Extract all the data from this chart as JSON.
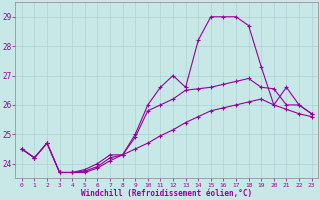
{
  "xlabel": "Windchill (Refroidissement éolien,°C)",
  "background_color": "#c8e8e8",
  "line_color": "#990099",
  "xlim": [
    -0.5,
    23.5
  ],
  "ylim": [
    23.5,
    29.5
  ],
  "yticks": [
    24,
    25,
    26,
    27,
    28,
    29
  ],
  "xticks": [
    0,
    1,
    2,
    3,
    4,
    5,
    6,
    7,
    8,
    9,
    10,
    11,
    12,
    13,
    14,
    15,
    16,
    17,
    18,
    19,
    20,
    21,
    22,
    23
  ],
  "series1_x": [
    0,
    1,
    2,
    3,
    4,
    5,
    6,
    7,
    8,
    9,
    10,
    11,
    12,
    13,
    14,
    15,
    16,
    17,
    18,
    19,
    20,
    21,
    22,
    23
  ],
  "series1_y": [
    24.5,
    24.2,
    24.7,
    23.7,
    23.7,
    23.8,
    24.0,
    24.3,
    24.3,
    25.0,
    26.0,
    26.6,
    27.0,
    26.6,
    28.2,
    29.0,
    29.0,
    29.0,
    28.7,
    27.3,
    26.0,
    26.6,
    26.0,
    25.7
  ],
  "series2_x": [
    0,
    1,
    2,
    3,
    4,
    5,
    6,
    7,
    8,
    9,
    10,
    11,
    12,
    13,
    14,
    15,
    16,
    17,
    18,
    19,
    20,
    21,
    22,
    23
  ],
  "series2_y": [
    24.5,
    24.2,
    24.7,
    23.7,
    23.7,
    23.75,
    23.9,
    24.2,
    24.3,
    24.9,
    25.8,
    26.0,
    26.2,
    26.5,
    26.55,
    26.6,
    26.7,
    26.8,
    26.9,
    26.6,
    26.55,
    26.0,
    26.0,
    25.7
  ],
  "series3_x": [
    0,
    1,
    2,
    3,
    4,
    5,
    6,
    7,
    8,
    9,
    10,
    11,
    12,
    13,
    14,
    15,
    16,
    17,
    18,
    19,
    20,
    21,
    22,
    23
  ],
  "series3_y": [
    24.5,
    24.2,
    24.7,
    23.7,
    23.7,
    23.7,
    23.85,
    24.1,
    24.3,
    24.5,
    24.7,
    24.95,
    25.15,
    25.4,
    25.6,
    25.8,
    25.9,
    26.0,
    26.1,
    26.2,
    26.0,
    25.85,
    25.7,
    25.6
  ]
}
